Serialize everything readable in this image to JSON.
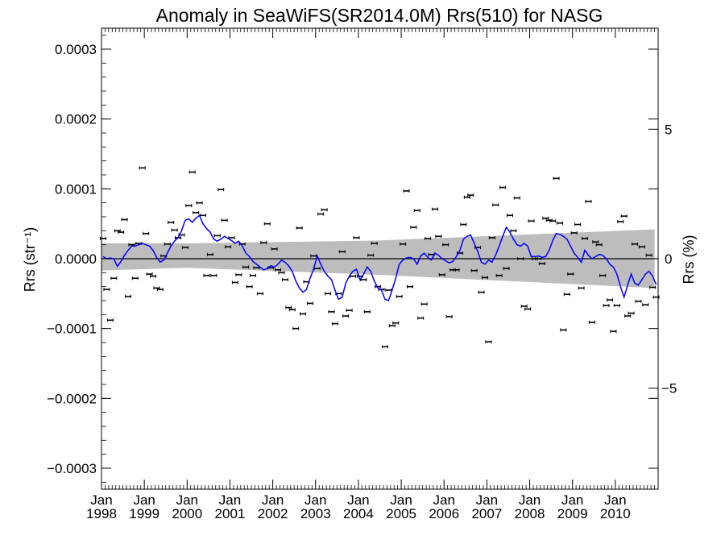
{
  "chart_data": {
    "type": "line",
    "title": "Anomaly in SeaWiFS(SR2014.0M) Rrs(510) for NASG",
    "ylabel": "Rrs (str⁻¹)",
    "y2label": "Rrs (%)",
    "xlim": [
      "1998-01",
      "2010-12"
    ],
    "ylim": [
      -0.00033,
      0.00033
    ],
    "y2lim": [
      -8.9,
      8.9
    ],
    "yticks": [
      "0.0003",
      "0.0002",
      "0.0001",
      "0.0000",
      "−0.0001",
      "−0.0002",
      "−0.0003"
    ],
    "y2ticks": [
      "5",
      "0",
      "−5"
    ],
    "xtick_months": [
      "Jan",
      "Jan",
      "Jan",
      "Jan",
      "Jan",
      "Jan",
      "Jan",
      "Jan",
      "Jan",
      "Jan",
      "Jan",
      "Jan",
      "Jan"
    ],
    "xtick_years": [
      "1998",
      "1999",
      "2000",
      "2001",
      "2002",
      "2003",
      "2004",
      "2005",
      "2006",
      "2007",
      "2008",
      "2009",
      "2010"
    ],
    "zero_line": 0,
    "band": {
      "x": [
        "1998-01",
        "2000-01",
        "2004-06",
        "2010-12"
      ],
      "upper": [
        2.2e-05,
        2.2e-05,
        2.6e-05,
        4.2e-05
      ],
      "lower": [
        -1.7e-05,
        -1.3e-05,
        -2.3e-05,
        -4.2e-05
      ]
    },
    "series": [
      {
        "color": "#0000ff",
        "x": [
          "1998-01",
          "1998-02",
          "1998-03",
          "1998-04",
          "1998-05",
          "1998-06",
          "1998-07",
          "1998-08",
          "1998-09",
          "1998-10",
          "1998-11",
          "1998-12",
          "1999-01",
          "1999-02",
          "1999-03",
          "1999-04",
          "1999-05",
          "1999-06",
          "1999-07",
          "1999-08",
          "1999-09",
          "1999-10",
          "1999-11",
          "1999-12",
          "2000-01",
          "2000-02",
          "2000-03",
          "2000-04",
          "2000-05",
          "2000-06",
          "2000-07",
          "2000-08",
          "2000-09",
          "2000-10",
          "2000-11",
          "2000-12",
          "2001-01",
          "2001-02",
          "2001-03",
          "2001-04",
          "2001-05",
          "2001-06",
          "2001-07",
          "2001-08",
          "2001-09",
          "2001-10",
          "2001-11",
          "2001-12",
          "2002-01",
          "2002-02",
          "2002-03",
          "2002-04",
          "2002-05",
          "2002-06",
          "2002-07",
          "2002-08",
          "2002-09",
          "2002-10",
          "2002-11",
          "2002-12",
          "2003-01",
          "2003-02",
          "2003-03",
          "2003-04",
          "2003-05",
          "2003-06",
          "2003-07",
          "2003-08",
          "2003-09",
          "2003-10",
          "2003-11",
          "2003-12",
          "2004-01",
          "2004-02",
          "2004-03",
          "2004-04",
          "2004-05",
          "2004-06",
          "2004-07",
          "2004-08",
          "2004-09",
          "2004-10",
          "2004-11",
          "2004-12",
          "2005-01",
          "2005-02",
          "2005-03",
          "2005-04",
          "2005-05",
          "2005-06",
          "2005-07",
          "2005-08",
          "2005-09",
          "2005-10",
          "2005-11",
          "2005-12",
          "2006-01",
          "2006-02",
          "2006-03",
          "2006-04",
          "2006-05",
          "2006-06",
          "2006-07",
          "2006-08",
          "2006-09",
          "2006-10",
          "2006-11",
          "2006-12",
          "2007-01",
          "2007-02",
          "2007-03",
          "2007-04",
          "2007-05",
          "2007-06",
          "2007-07",
          "2007-08",
          "2007-09",
          "2007-10",
          "2007-11",
          "2007-12",
          "2008-01",
          "2008-02",
          "2008-03",
          "2008-04",
          "2008-05",
          "2008-06",
          "2008-07",
          "2008-08",
          "2008-09",
          "2008-10",
          "2008-11",
          "2008-12",
          "2009-01",
          "2009-02",
          "2009-03",
          "2009-04",
          "2009-05",
          "2009-06",
          "2009-07",
          "2009-08",
          "2009-09",
          "2009-10",
          "2009-11",
          "2009-12",
          "2010-01",
          "2010-02",
          "2010-03",
          "2010-04",
          "2010-05",
          "2010-06",
          "2010-07",
          "2010-08",
          "2010-09",
          "2010-10",
          "2010-11",
          "2010-12"
        ],
        "values": [
          3e-06,
          0.0,
          1e-06,
          0.0,
          -1.1e-05,
          -4e-06,
          5e-06,
          1.2e-05,
          1.8e-05,
          1.8e-05,
          2e-05,
          2.2e-05,
          2e-05,
          1.8e-05,
          1.2e-05,
          2e-06,
          -5e-06,
          -2e-06,
          8e-06,
          1.8e-05,
          2.5e-05,
          3e-05,
          4e-05,
          5.5e-05,
          5.7e-05,
          5.2e-05,
          5.8e-05,
          6.2e-05,
          5e-05,
          4.3e-05,
          3.8e-05,
          2.8e-05,
          2.5e-05,
          2.8e-05,
          3.2e-05,
          2.9e-05,
          2.6e-05,
          2.2e-05,
          2.5e-05,
          1.8e-05,
          8e-06,
          3e-06,
          -4e-06,
          -8e-06,
          -1.2e-05,
          -1.6e-05,
          -1.4e-05,
          -1e-05,
          -1.2e-05,
          -8e-06,
          -2e-06,
          -5e-06,
          -1e-05,
          -1.8e-05,
          -3.2e-05,
          -4.2e-05,
          -4.8e-05,
          -4.4e-05,
          -2.8e-05,
          -1.5e-05,
          4e-06,
          -8e-06,
          -1.8e-05,
          -2.5e-05,
          -3e-05,
          -4.5e-05,
          -5.8e-05,
          -5.5e-05,
          -3.5e-05,
          -2.5e-05,
          -1.8e-05,
          -1.5e-05,
          -3e-05,
          -2.2e-05,
          -1.2e-05,
          -1.8e-05,
          -3.2e-05,
          -4.2e-05,
          -4.5e-05,
          -5.8e-05,
          -6e-05,
          -4.5e-05,
          -2.8e-05,
          -8e-06,
          -2e-06,
          1e-06,
          2e-06,
          0.0,
          -8e-06,
          4e-06,
          8e-06,
          2e-06,
          -2e-06,
          8e-06,
          5e-06,
          0.0,
          -3e-06,
          -6e-06,
          -4e-06,
          3e-06,
          1.2e-05,
          2.8e-05,
          3.2e-05,
          3.4e-05,
          2.2e-05,
          1e-05,
          -5e-06,
          -8e-06,
          -2e-06,
          -5e-06,
          5e-06,
          1.8e-05,
          3.2e-05,
          4.5e-05,
          3.8e-05,
          2.8e-05,
          2e-05,
          1.8e-05,
          2.2e-05,
          1.8e-05,
          3e-06,
          3e-06,
          4e-06,
          2e-06,
          3e-06,
          1.2e-05,
          2.6e-05,
          3.6e-05,
          3.5e-05,
          3.2e-05,
          2.8e-05,
          1.8e-05,
          8e-06,
          2e-06,
          -5e-06,
          1.2e-05,
          5e-06,
          0.0,
          3e-06,
          6e-06,
          5e-06,
          0.0,
          -8e-06,
          -1.2e-05,
          -2.2e-05,
          -4e-05,
          -5.5e-05,
          -3.8e-05,
          -2.2e-05,
          -3.5e-05,
          -3.8e-05,
          -3e-05,
          -2.2e-05,
          -1.8e-05,
          -2.5e-05,
          -3.7e-05
        ]
      }
    ],
    "points": {
      "x": [
        "1998-01",
        "1998-02",
        "1998-03",
        "1998-04",
        "1998-05",
        "1998-06",
        "1998-07",
        "1998-08",
        "1998-09",
        "1998-10",
        "1998-11",
        "1998-12",
        "1999-01",
        "1999-02",
        "1999-03",
        "1999-04",
        "1999-05",
        "1999-06",
        "1999-07",
        "1999-08",
        "1999-09",
        "1999-10",
        "1999-11",
        "1999-12",
        "2000-01",
        "2000-02",
        "2000-03",
        "2000-04",
        "2000-05",
        "2000-06",
        "2000-07",
        "2000-08",
        "2000-09",
        "2000-10",
        "2000-11",
        "2000-12",
        "2001-01",
        "2001-02",
        "2001-03",
        "2001-04",
        "2001-05",
        "2001-06",
        "2001-07",
        "2001-08",
        "2001-09",
        "2001-10",
        "2001-11",
        "2001-12",
        "2002-01",
        "2002-02",
        "2002-03",
        "2002-04",
        "2002-05",
        "2002-06",
        "2002-07",
        "2002-08",
        "2002-09",
        "2002-10",
        "2002-11",
        "2002-12",
        "2003-01",
        "2003-02",
        "2003-03",
        "2003-04",
        "2003-05",
        "2003-06",
        "2003-07",
        "2003-08",
        "2003-09",
        "2003-10",
        "2003-11",
        "2003-12",
        "2004-01",
        "2004-02",
        "2004-03",
        "2004-04",
        "2004-05",
        "2004-06",
        "2004-07",
        "2004-08",
        "2004-09",
        "2004-10",
        "2004-11",
        "2004-12",
        "2005-01",
        "2005-02",
        "2005-03",
        "2005-04",
        "2005-05",
        "2005-06",
        "2005-07",
        "2005-08",
        "2005-09",
        "2005-10",
        "2005-11",
        "2005-12",
        "2006-01",
        "2006-02",
        "2006-03",
        "2006-04",
        "2006-05",
        "2006-06",
        "2006-07",
        "2006-08",
        "2006-09",
        "2006-10",
        "2006-11",
        "2006-12",
        "2007-01",
        "2007-02",
        "2007-03",
        "2007-04",
        "2007-05",
        "2007-06",
        "2007-07",
        "2007-08",
        "2007-09",
        "2007-10",
        "2007-11",
        "2007-12",
        "2008-01",
        "2008-02",
        "2008-03",
        "2008-04",
        "2008-05",
        "2008-06",
        "2008-07",
        "2008-08",
        "2008-09",
        "2008-10",
        "2008-11",
        "2008-12",
        "2009-01",
        "2009-02",
        "2009-03",
        "2009-04",
        "2009-05",
        "2009-06",
        "2009-07",
        "2009-08",
        "2009-09",
        "2009-10",
        "2009-11",
        "2009-12",
        "2010-01",
        "2010-02",
        "2010-03",
        "2010-04",
        "2010-05",
        "2010-06",
        "2010-07",
        "2010-08",
        "2010-09",
        "2010-10",
        "2010-11",
        "2010-12"
      ],
      "values": [
        2.9e-05,
        -4.4e-05,
        -8.8e-05,
        -2.8e-05,
        4e-05,
        3.8e-05,
        5.6e-05,
        -5.4e-05,
        2e-05,
        -2.8e-05,
        2.2e-05,
        0.00013,
        3.6e-05,
        -2.2e-05,
        -2.5e-05,
        -4.2e-05,
        -4.4e-05,
        4e-06,
        2.1e-05,
        5.2e-05,
        4.1e-05,
        3e-05,
        3.4e-05,
        1.6e-05,
        7.6e-05,
        0.000124,
        6.6e-05,
        8e-05,
        6.2e-05,
        -2.4e-05,
        6e-06,
        -2.4e-05,
        3.3e-05,
        9.9e-05,
        5.5e-05,
        1.7e-05,
        3e-05,
        -3.4e-05,
        -2.3e-05,
        2.1e-05,
        -1.2e-05,
        -4e-05,
        -2.4e-05,
        -1.3e-05,
        -5e-05,
        2.3e-05,
        5e-05,
        -1.3e-05,
        1.4e-05,
        -1.6e-05,
        -2e-05,
        -3e-05,
        -7e-05,
        -7.3e-05,
        -0.0001,
        4.4e-05,
        -7.9e-05,
        -3.3e-05,
        -6.4e-05,
        4e-06,
        -1.4e-05,
        6.4e-05,
        7e-05,
        -5e-05,
        -7.6e-05,
        -9.3e-05,
        -5e-05,
        1e-05,
        -8.2e-05,
        -7.4e-05,
        -2.5e-05,
        3e-05,
        -2.5e-05,
        -3e-05,
        -7.6e-05,
        5e-06,
        2.2e-05,
        -4e-05,
        -4.4e-05,
        -0.000126,
        -4.5e-05,
        -9.6e-05,
        -9.2e-05,
        -5.4e-05,
        2.1e-05,
        9.7e-05,
        -4e-05,
        4.5e-05,
        6.9e-05,
        -8.5e-05,
        -6.5e-05,
        2.9e-05,
        6e-06,
        7.1e-05,
        3.2e-05,
        -2.3e-05,
        2e-05,
        -8.3e-05,
        -1.6e-05,
        -1.6e-05,
        8e-06,
        4.9e-05,
        8.8e-05,
        9.1e-05,
        -1.7e-05,
        1.6e-05,
        -4.8e-05,
        -2.7e-05,
        -0.000119,
        3e-05,
        7.7e-05,
        -2.4e-05,
        0.000102,
        -1.4e-05,
        6.2e-05,
        4e-05,
        8.7e-05,
        0.0,
        -6.8e-05,
        -7.2e-05,
        5.4e-05,
        0.0,
        0.0,
        -7e-06,
        5.8e-05,
        5.5e-05,
        5.4e-05,
        0.000115,
        5.1e-05,
        -0.000102,
        -5.1e-05,
        -2.2e-05,
        3.7e-05,
        4.9e-05,
        -4.2e-05,
        2.9e-05,
        8.2e-05,
        -9.1e-05,
        2.4e-05,
        2e-05,
        -2.4e-05,
        -6.7e-05,
        -5.9e-05,
        -0.000104,
        -6.7e-05,
        5.3e-05,
        6.1e-05,
        -8.2e-05,
        -7.8e-05,
        2.1e-05,
        -6.1e-05,
        1.7e-05,
        -6.6e-05,
        5e-06,
        -4.1e-05,
        -5.5e-05
      ]
    },
    "grid": false,
    "legend": "none"
  }
}
